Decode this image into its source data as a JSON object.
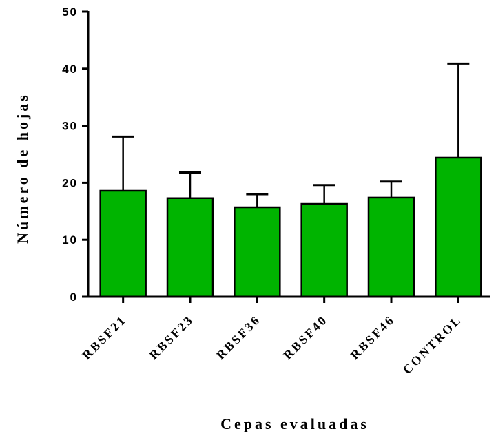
{
  "chart_data": {
    "type": "bar",
    "xlabel": "Cepas evaluadas",
    "ylabel": "Número de hojas",
    "ylim": [
      0,
      50
    ],
    "yticks": [
      0,
      10,
      20,
      30,
      40,
      50
    ],
    "categories": [
      "RBSF21",
      "RBSF23",
      "RBSF36",
      "RBSF40",
      "RBSF46",
      "CONTROL"
    ],
    "values": [
      18.6,
      17.3,
      15.7,
      16.3,
      17.4,
      24.4
    ],
    "error_upper": [
      28.1,
      21.8,
      18.0,
      19.6,
      20.2,
      40.9
    ],
    "bar_color": "#00b400",
    "grid": false,
    "legend": "none"
  }
}
